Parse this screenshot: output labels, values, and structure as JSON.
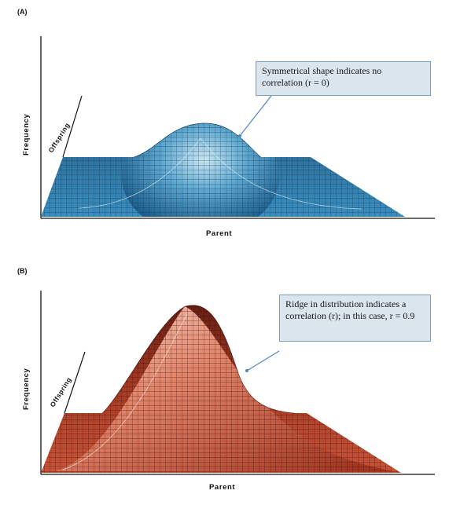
{
  "panel_a": {
    "label": "(A)",
    "y_axis_label": "Frequency",
    "depth_axis_label": "Offspring",
    "x_axis_label": "Parent",
    "callout": "Symmetrical shape indicates no correlation (r = 0)",
    "surface_color": "#3d8fbf"
  },
  "panel_b": {
    "label": "(B)",
    "y_axis_label": "Frequency",
    "depth_axis_label": "Offspring",
    "x_axis_label": "Parent",
    "callout": "Ridge in distribution indicates a correlation (r); in this case, r = 0.9",
    "surface_color": "#c8553a"
  },
  "colors": {
    "callout_bg": "#dbe5ee",
    "callout_border": "#7a9fbd",
    "callout_arrow": "#4f86b8"
  }
}
